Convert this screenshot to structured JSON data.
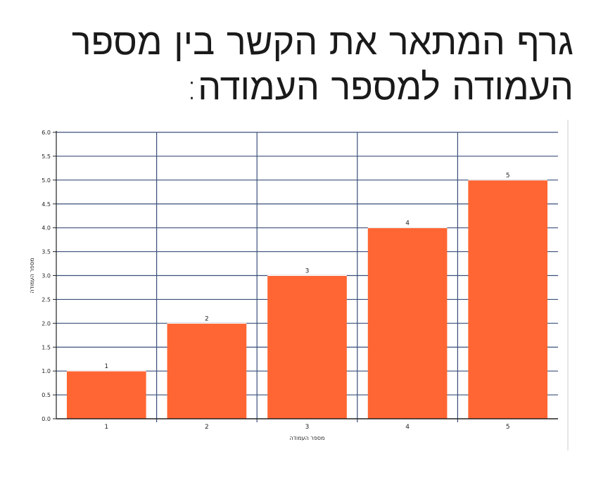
{
  "title_lines": [
    "גרף המתאר את הקשר בין מספר",
    "העמודה למספר העמודה:"
  ],
  "chart_data": {
    "type": "bar",
    "categories": [
      "1",
      "2",
      "3",
      "4",
      "5"
    ],
    "values": [
      1,
      2,
      3,
      4,
      5
    ],
    "data_labels": [
      "1",
      "2",
      "3",
      "4",
      "5"
    ],
    "xlabel": "מספר העמודה",
    "ylabel": "מספר העמודה",
    "ylim": [
      0,
      6
    ],
    "yticks": [
      "0.0",
      "0.5",
      "1.0",
      "1.5",
      "2.0",
      "2.5",
      "3.0",
      "3.5",
      "4.0",
      "4.5",
      "5.0",
      "5.5",
      "6.0"
    ],
    "grid": true,
    "bar_color": "#ff6633",
    "grid_color": "#3a4f7a"
  }
}
